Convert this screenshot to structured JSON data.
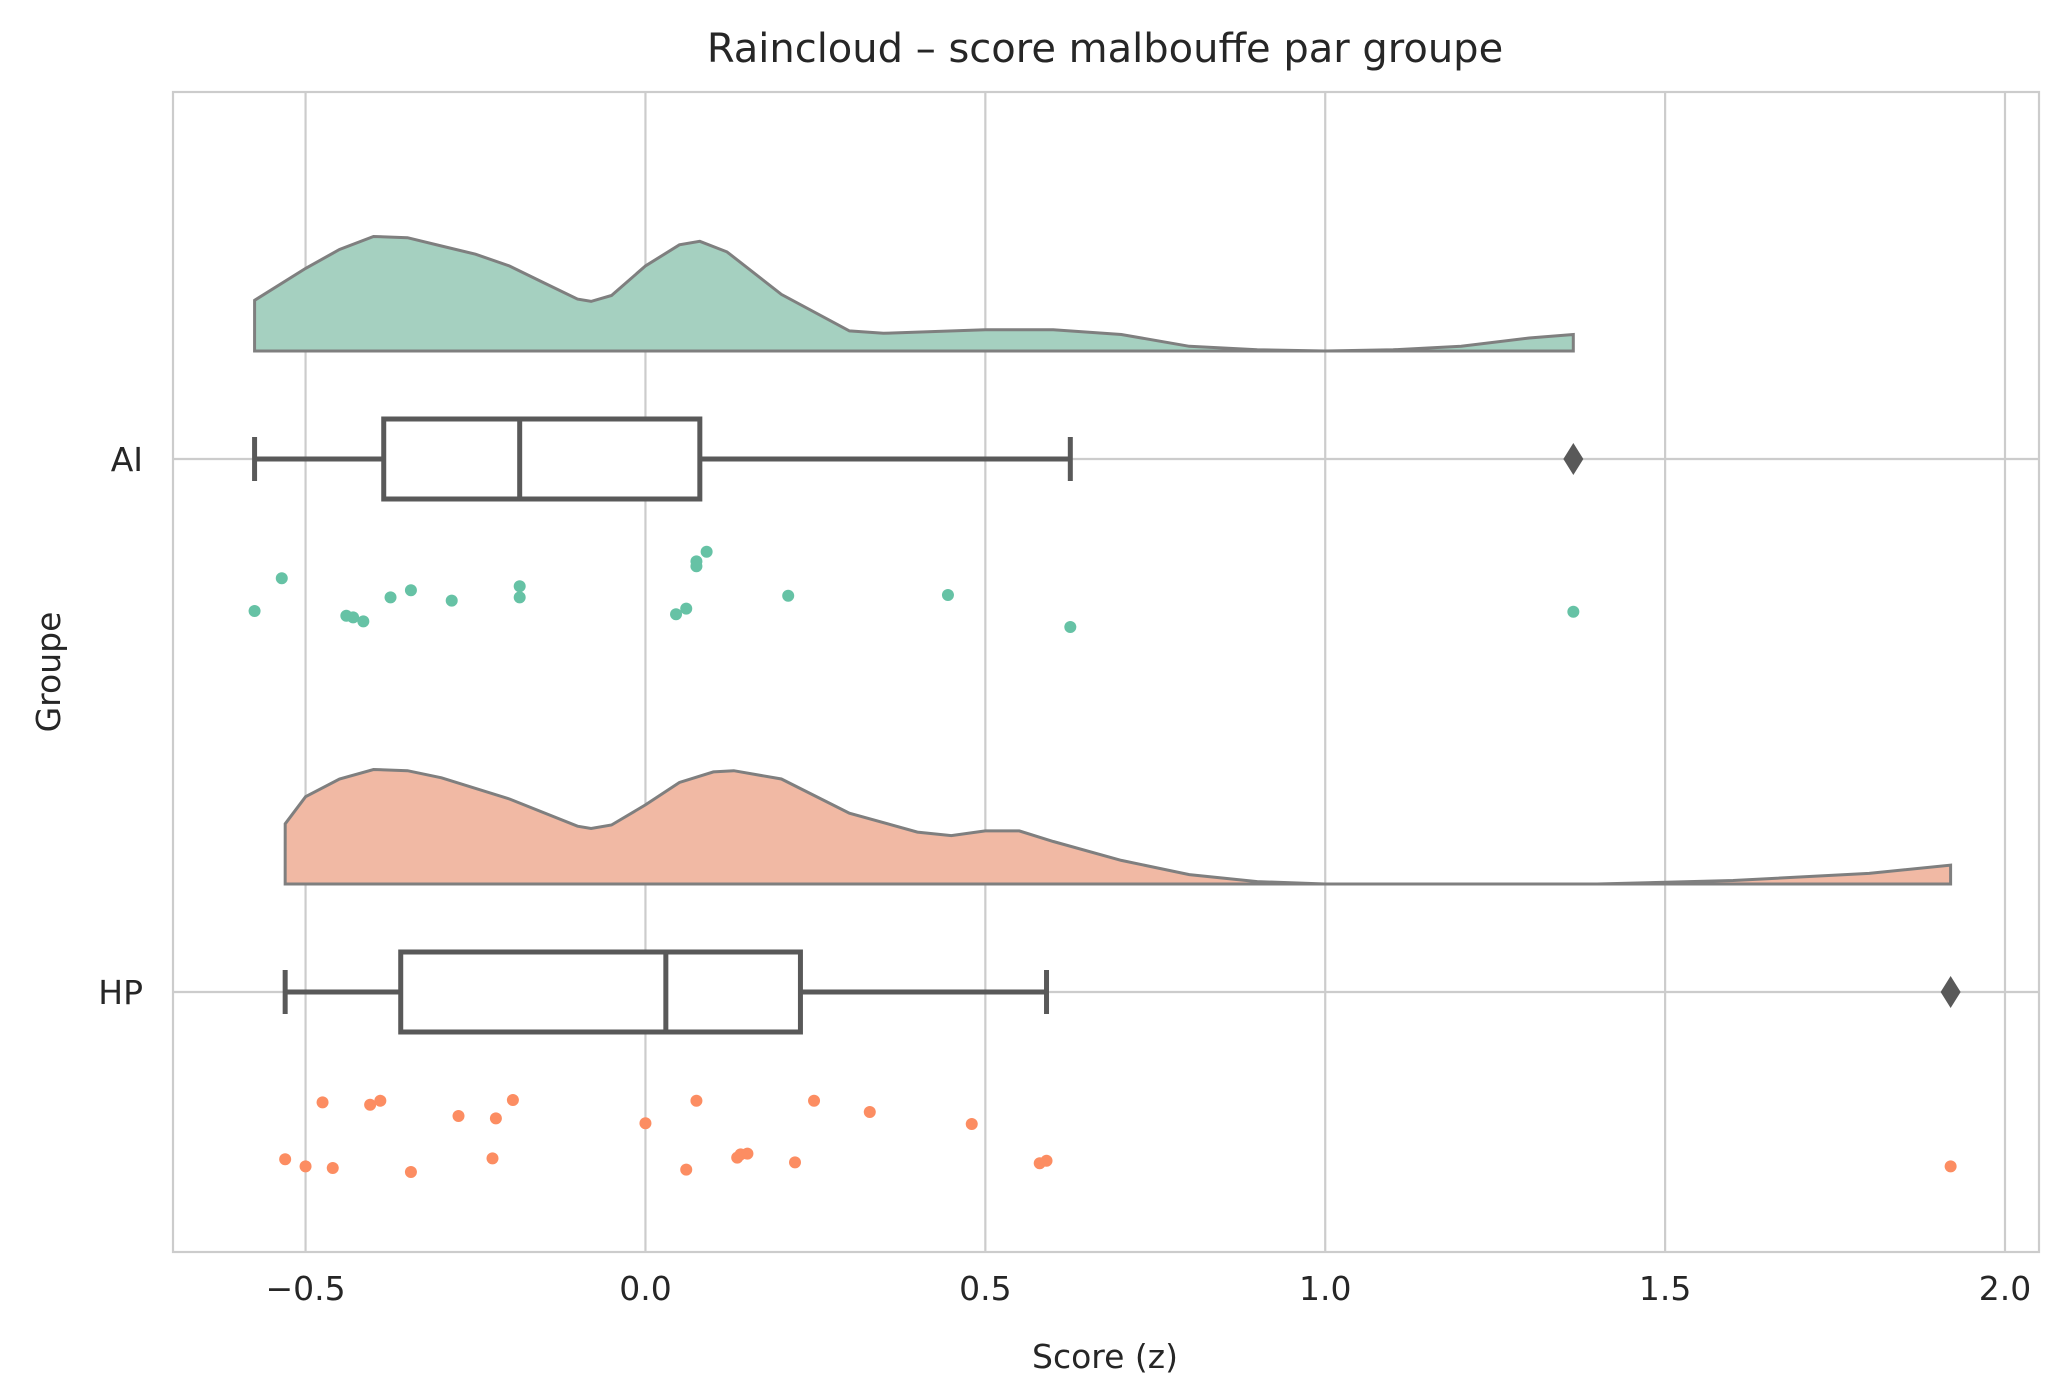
{
  "chart_data": {
    "type": "raincloud",
    "title": "Raincloud – score malbouffe par groupe",
    "xlabel": "Score (z)",
    "ylabel": "Groupe",
    "xlim": [
      -0.695,
      2.05
    ],
    "xticks": [
      -0.5,
      0.0,
      0.5,
      1.0,
      1.5,
      2.0
    ],
    "xtick_labels": [
      "−0.5",
      "0.0",
      "0.5",
      "1.0",
      "1.5",
      "2.0"
    ],
    "grid": true,
    "categories": [
      "AI",
      "HP"
    ],
    "series": [
      {
        "name": "AI",
        "cloud_color": "#a5d0c0",
        "point_color": "#66c2a5",
        "box": {
          "whisker_low": -0.575,
          "q1": -0.385,
          "median": -0.185,
          "q3": 0.08,
          "whisker_high": 0.625
        },
        "outliers": [
          1.365
        ],
        "density_x": [
          -0.575,
          -0.5,
          -0.45,
          -0.4,
          -0.35,
          -0.3,
          -0.25,
          -0.2,
          -0.15,
          -0.1,
          -0.08,
          -0.05,
          0.0,
          0.05,
          0.08,
          0.12,
          0.2,
          0.3,
          0.35,
          0.4,
          0.5,
          0.6,
          0.7,
          0.8,
          0.9,
          1.0,
          1.1,
          1.2,
          1.3,
          1.365
        ],
        "density_y": [
          0.43,
          0.7,
          0.86,
          0.97,
          0.96,
          0.89,
          0.82,
          0.72,
          0.58,
          0.44,
          0.42,
          0.47,
          0.72,
          0.9,
          0.93,
          0.84,
          0.48,
          0.17,
          0.15,
          0.16,
          0.18,
          0.18,
          0.14,
          0.04,
          0.01,
          0.0,
          0.01,
          0.04,
          0.11,
          0.14
        ],
        "points_x": [
          -0.575,
          -0.535,
          -0.44,
          -0.43,
          -0.415,
          -0.375,
          -0.345,
          -0.285,
          -0.185,
          -0.185,
          0.045,
          0.06,
          0.075,
          0.075,
          0.09,
          0.21,
          0.445,
          0.625,
          1.365
        ],
        "points_jitter": [
          0.25,
          -0.16,
          0.31,
          0.33,
          0.38,
          0.08,
          -0.01,
          0.12,
          0.08,
          -0.06,
          0.29,
          0.22,
          -0.31,
          -0.37,
          -0.49,
          0.06,
          0.05,
          0.45,
          0.26
        ]
      },
      {
        "name": "HP",
        "cloud_color": "#f1b9a4",
        "point_color": "#fc8d62",
        "box": {
          "whisker_low": -0.53,
          "q1": -0.36,
          "median": 0.03,
          "q3": 0.228,
          "whisker_high": 0.59
        },
        "outliers": [
          1.92
        ],
        "density_x": [
          -0.53,
          -0.5,
          -0.45,
          -0.4,
          -0.35,
          -0.3,
          -0.2,
          -0.1,
          -0.08,
          -0.05,
          0.0,
          0.05,
          0.1,
          0.13,
          0.2,
          0.3,
          0.4,
          0.45,
          0.5,
          0.55,
          0.6,
          0.7,
          0.8,
          0.9,
          1.0,
          1.2,
          1.4,
          1.6,
          1.8,
          1.92
        ],
        "density_y": [
          0.51,
          0.74,
          0.89,
          0.97,
          0.96,
          0.9,
          0.72,
          0.49,
          0.47,
          0.5,
          0.67,
          0.86,
          0.95,
          0.96,
          0.89,
          0.6,
          0.44,
          0.41,
          0.45,
          0.45,
          0.36,
          0.2,
          0.08,
          0.02,
          0.0,
          0.0,
          0.0,
          0.03,
          0.09,
          0.16
        ],
        "points_x": [
          -0.53,
          -0.5,
          -0.475,
          -0.46,
          -0.405,
          -0.39,
          -0.345,
          -0.275,
          -0.225,
          -0.22,
          -0.195,
          0.0,
          0.06,
          0.075,
          0.135,
          0.14,
          0.15,
          0.22,
          0.248,
          0.33,
          0.48,
          0.58,
          0.59,
          1.92
        ],
        "points_jitter": [
          0.44,
          0.53,
          -0.27,
          0.55,
          -0.24,
          -0.29,
          0.6,
          -0.1,
          0.43,
          -0.07,
          -0.3,
          -0.01,
          0.57,
          -0.29,
          0.42,
          0.38,
          0.37,
          0.48,
          -0.29,
          -0.15,
          0.0,
          0.49,
          0.46,
          0.53
        ]
      }
    ]
  }
}
